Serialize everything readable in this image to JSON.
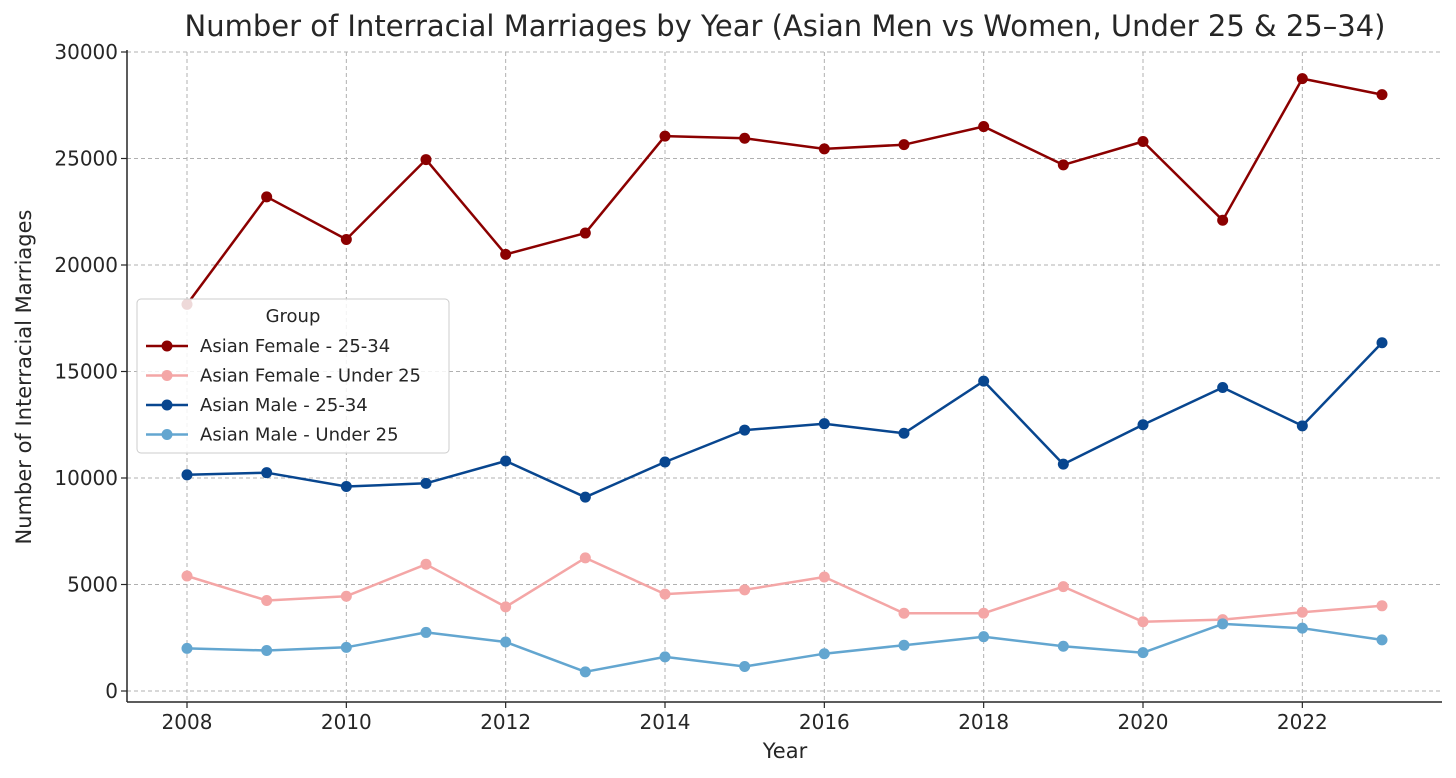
{
  "chart_data": {
    "type": "line",
    "title": "Number of Interracial Marriages by Year (Asian Men vs Women, Under 25 & 25–34)",
    "xlabel": "Year",
    "ylabel": "Number of Interracial Marriages",
    "x": [
      2008,
      2009,
      2010,
      2011,
      2012,
      2013,
      2014,
      2015,
      2016,
      2017,
      2018,
      2019,
      2020,
      2021,
      2022,
      2023
    ],
    "xlim": [
      2007.25,
      2023.75
    ],
    "ylim": [
      -500,
      30000
    ],
    "x_ticks": [
      "2008",
      "2010",
      "2012",
      "2014",
      "2016",
      "2018",
      "2020",
      "2022"
    ],
    "y_ticks": [
      "0",
      "5000",
      "10000",
      "15000",
      "20000",
      "25000",
      "30000"
    ],
    "grid": true,
    "legend": {
      "title": "Group",
      "position": "center-left"
    },
    "series": [
      {
        "name": "Asian Female - 25-34",
        "color": "#8b0000",
        "values": [
          18150,
          23200,
          21200,
          24950,
          20500,
          21500,
          26050,
          25950,
          25450,
          25650,
          26500,
          24700,
          25800,
          22100,
          28750,
          28000
        ]
      },
      {
        "name": "Asian Female - Under 25",
        "color": "#f4a6a6",
        "values": [
          5400,
          4250,
          4450,
          5950,
          3950,
          6250,
          4550,
          4750,
          5350,
          3650,
          3650,
          4900,
          3250,
          3350,
          3700,
          4000
        ]
      },
      {
        "name": "Asian Male - 25-34",
        "color": "#08468f",
        "values": [
          10150,
          10250,
          9600,
          9750,
          10800,
          9100,
          10750,
          12250,
          12550,
          12100,
          14550,
          10650,
          12500,
          14250,
          12450,
          16350
        ]
      },
      {
        "name": "Asian Male - Under 25",
        "color": "#63a6d0",
        "values": [
          2000,
          1900,
          2050,
          2750,
          2300,
          900,
          1600,
          1150,
          1750,
          2150,
          2550,
          2100,
          1800,
          3150,
          2950,
          2400
        ]
      }
    ]
  }
}
